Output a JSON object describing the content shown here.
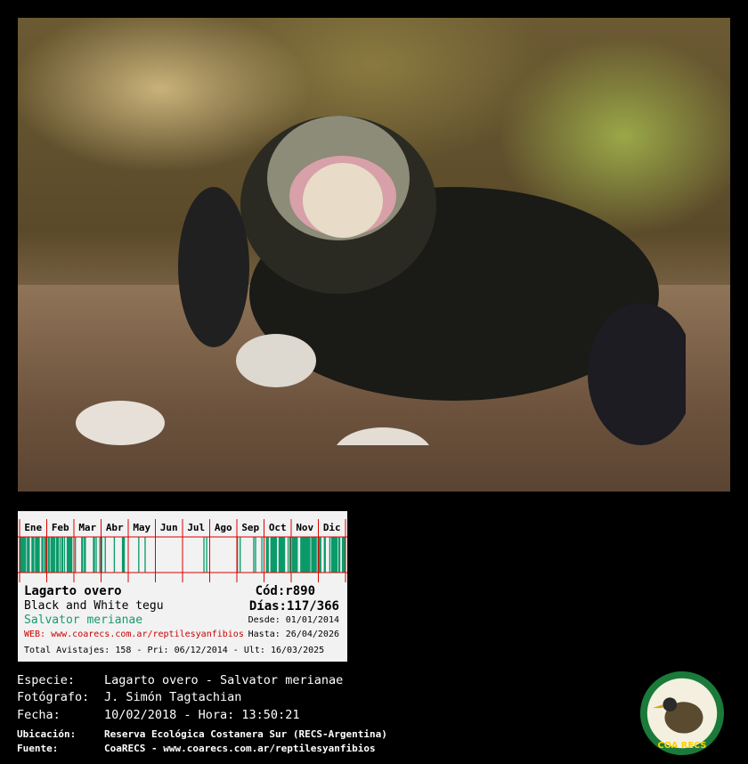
{
  "photo": {
    "subject": "lizard-eating-egg"
  },
  "card": {
    "months": [
      "Ene",
      "Feb",
      "Mar",
      "Abr",
      "May",
      "Jun",
      "Jul",
      "Ago",
      "Sep",
      "Oct",
      "Nov",
      "Dic"
    ],
    "month_activity": [
      0.6,
      0.6,
      0.35,
      0.1,
      0.05,
      0,
      0.05,
      0,
      0.2,
      0.7,
      0.6,
      0.65
    ],
    "common_name": "Lagarto overo",
    "english_name": "Black and White tegu",
    "scientific_name": "Salvator merianae",
    "web": "WEB: www.coarecs.com.ar/reptilesyanfibios",
    "code": "Cód:r890",
    "days": "Días:117/366",
    "desde": "Desde: 01/01/2014",
    "hasta": "Hasta: 26/04/2026",
    "totals": "Total Avistajes: 158 - Pri: 06/12/2014 - Ult: 16/03/2025",
    "colors": {
      "bar": "#0a9a6a",
      "grid": "#dd0000",
      "sci": "#1a9a6a",
      "web": "#cc0000"
    }
  },
  "info": [
    {
      "label": "Especie:",
      "value": "Lagarto overo - Salvator merianae"
    },
    {
      "label": "Fotógrafo:",
      "value": "J. Simón Tagtachian"
    },
    {
      "label": "Fecha:",
      "value": "10/02/2018 - Hora: 13:50:21"
    },
    {
      "label": "Ubicación:",
      "value": "Reserva Ecológica Costanera Sur (RECS-Argentina)"
    },
    {
      "label": "Fuente:",
      "value": "CoaRECS - www.coarecs.com.ar/reptilesyanfibios"
    }
  ],
  "logo": {
    "text": "COA RECS"
  }
}
